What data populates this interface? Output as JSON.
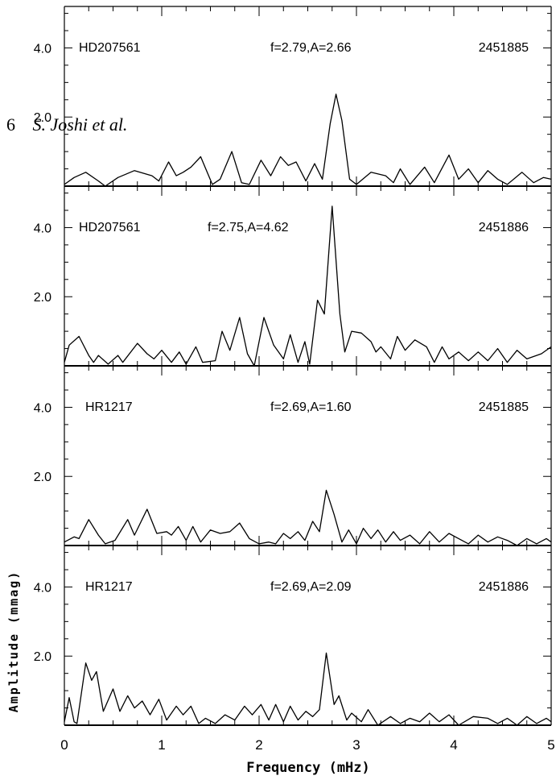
{
  "header": {
    "page_number": "6",
    "running_author": "S. Joshi et al."
  },
  "chart_data": {
    "type": "line",
    "xlabel": "Frequency (mHz)",
    "ylabel": "Amplitude (mmag)",
    "xlim": [
      0,
      5
    ],
    "ylim": [
      0,
      5.2
    ],
    "x_ticks": [
      "0",
      "1",
      "2",
      "3",
      "4",
      "5"
    ],
    "y_ticks": [
      "2.0",
      "4.0"
    ],
    "grid": false,
    "panels": [
      {
        "star": "HD207561",
        "label": "f=2.79,A=2.66",
        "date": "2451885",
        "series": [
          {
            "x": 0.0,
            "y": 0.05
          },
          {
            "x": 0.1,
            "y": 0.25
          },
          {
            "x": 0.22,
            "y": 0.4
          },
          {
            "x": 0.35,
            "y": 0.15
          },
          {
            "x": 0.42,
            "y": 0.0
          },
          {
            "x": 0.55,
            "y": 0.25
          },
          {
            "x": 0.72,
            "y": 0.45
          },
          {
            "x": 0.9,
            "y": 0.3
          },
          {
            "x": 0.97,
            "y": 0.15
          },
          {
            "x": 1.07,
            "y": 0.7
          },
          {
            "x": 1.15,
            "y": 0.3
          },
          {
            "x": 1.22,
            "y": 0.4
          },
          {
            "x": 1.3,
            "y": 0.55
          },
          {
            "x": 1.4,
            "y": 0.85
          },
          {
            "x": 1.52,
            "y": 0.05
          },
          {
            "x": 1.6,
            "y": 0.2
          },
          {
            "x": 1.72,
            "y": 1.0
          },
          {
            "x": 1.82,
            "y": 0.1
          },
          {
            "x": 1.9,
            "y": 0.05
          },
          {
            "x": 2.02,
            "y": 0.75
          },
          {
            "x": 2.12,
            "y": 0.3
          },
          {
            "x": 2.22,
            "y": 0.85
          },
          {
            "x": 2.3,
            "y": 0.6
          },
          {
            "x": 2.38,
            "y": 0.7
          },
          {
            "x": 2.48,
            "y": 0.15
          },
          {
            "x": 2.57,
            "y": 0.65
          },
          {
            "x": 2.65,
            "y": 0.2
          },
          {
            "x": 2.73,
            "y": 1.8
          },
          {
            "x": 2.79,
            "y": 2.66
          },
          {
            "x": 2.85,
            "y": 1.9
          },
          {
            "x": 2.93,
            "y": 0.2
          },
          {
            "x": 3.0,
            "y": 0.05
          },
          {
            "x": 3.15,
            "y": 0.4
          },
          {
            "x": 3.3,
            "y": 0.3
          },
          {
            "x": 3.38,
            "y": 0.1
          },
          {
            "x": 3.45,
            "y": 0.5
          },
          {
            "x": 3.55,
            "y": 0.05
          },
          {
            "x": 3.7,
            "y": 0.55
          },
          {
            "x": 3.8,
            "y": 0.1
          },
          {
            "x": 3.95,
            "y": 0.9
          },
          {
            "x": 4.05,
            "y": 0.2
          },
          {
            "x": 4.15,
            "y": 0.5
          },
          {
            "x": 4.25,
            "y": 0.1
          },
          {
            "x": 4.35,
            "y": 0.45
          },
          {
            "x": 4.45,
            "y": 0.2
          },
          {
            "x": 4.55,
            "y": 0.05
          },
          {
            "x": 4.7,
            "y": 0.4
          },
          {
            "x": 4.82,
            "y": 0.1
          },
          {
            "x": 4.92,
            "y": 0.25
          },
          {
            "x": 5.0,
            "y": 0.2
          }
        ]
      },
      {
        "star": "HD207561",
        "label": "f=2.75,A=4.62",
        "date": "2451886",
        "series": [
          {
            "x": 0.0,
            "y": 0.1
          },
          {
            "x": 0.05,
            "y": 0.6
          },
          {
            "x": 0.15,
            "y": 0.85
          },
          {
            "x": 0.25,
            "y": 0.3
          },
          {
            "x": 0.3,
            "y": 0.1
          },
          {
            "x": 0.35,
            "y": 0.3
          },
          {
            "x": 0.45,
            "y": 0.05
          },
          {
            "x": 0.55,
            "y": 0.3
          },
          {
            "x": 0.6,
            "y": 0.1
          },
          {
            "x": 0.75,
            "y": 0.65
          },
          {
            "x": 0.85,
            "y": 0.35
          },
          {
            "x": 0.92,
            "y": 0.2
          },
          {
            "x": 1.0,
            "y": 0.45
          },
          {
            "x": 1.1,
            "y": 0.1
          },
          {
            "x": 1.18,
            "y": 0.4
          },
          {
            "x": 1.25,
            "y": 0.05
          },
          {
            "x": 1.35,
            "y": 0.55
          },
          {
            "x": 1.42,
            "y": 0.1
          },
          {
            "x": 1.55,
            "y": 0.15
          },
          {
            "x": 1.62,
            "y": 1.0
          },
          {
            "x": 1.7,
            "y": 0.45
          },
          {
            "x": 1.8,
            "y": 1.4
          },
          {
            "x": 1.88,
            "y": 0.35
          },
          {
            "x": 1.95,
            "y": 0.0
          },
          {
            "x": 2.05,
            "y": 1.4
          },
          {
            "x": 2.15,
            "y": 0.6
          },
          {
            "x": 2.25,
            "y": 0.2
          },
          {
            "x": 2.32,
            "y": 0.9
          },
          {
            "x": 2.4,
            "y": 0.1
          },
          {
            "x": 2.47,
            "y": 0.7
          },
          {
            "x": 2.52,
            "y": 0.05
          },
          {
            "x": 2.6,
            "y": 1.9
          },
          {
            "x": 2.67,
            "y": 1.5
          },
          {
            "x": 2.75,
            "y": 4.62
          },
          {
            "x": 2.83,
            "y": 1.5
          },
          {
            "x": 2.88,
            "y": 0.4
          },
          {
            "x": 2.95,
            "y": 1.0
          },
          {
            "x": 3.05,
            "y": 0.95
          },
          {
            "x": 3.15,
            "y": 0.7
          },
          {
            "x": 3.2,
            "y": 0.4
          },
          {
            "x": 3.25,
            "y": 0.55
          },
          {
            "x": 3.35,
            "y": 0.2
          },
          {
            "x": 3.42,
            "y": 0.85
          },
          {
            "x": 3.5,
            "y": 0.45
          },
          {
            "x": 3.6,
            "y": 0.75
          },
          {
            "x": 3.72,
            "y": 0.55
          },
          {
            "x": 3.8,
            "y": 0.1
          },
          {
            "x": 3.88,
            "y": 0.55
          },
          {
            "x": 3.95,
            "y": 0.2
          },
          {
            "x": 4.05,
            "y": 0.4
          },
          {
            "x": 4.15,
            "y": 0.15
          },
          {
            "x": 4.25,
            "y": 0.4
          },
          {
            "x": 4.35,
            "y": 0.15
          },
          {
            "x": 4.45,
            "y": 0.5
          },
          {
            "x": 4.55,
            "y": 0.1
          },
          {
            "x": 4.65,
            "y": 0.45
          },
          {
            "x": 4.75,
            "y": 0.2
          },
          {
            "x": 4.9,
            "y": 0.35
          },
          {
            "x": 5.0,
            "y": 0.55
          }
        ]
      },
      {
        "star": "HR1217",
        "label": "f=2.69,A=1.60",
        "date": "2451885",
        "series": [
          {
            "x": 0.0,
            "y": 0.1
          },
          {
            "x": 0.1,
            "y": 0.25
          },
          {
            "x": 0.15,
            "y": 0.2
          },
          {
            "x": 0.25,
            "y": 0.75
          },
          {
            "x": 0.35,
            "y": 0.3
          },
          {
            "x": 0.42,
            "y": 0.05
          },
          {
            "x": 0.52,
            "y": 0.15
          },
          {
            "x": 0.65,
            "y": 0.75
          },
          {
            "x": 0.72,
            "y": 0.3
          },
          {
            "x": 0.85,
            "y": 1.05
          },
          {
            "x": 0.95,
            "y": 0.35
          },
          {
            "x": 1.05,
            "y": 0.4
          },
          {
            "x": 1.1,
            "y": 0.3
          },
          {
            "x": 1.17,
            "y": 0.55
          },
          {
            "x": 1.25,
            "y": 0.15
          },
          {
            "x": 1.32,
            "y": 0.55
          },
          {
            "x": 1.4,
            "y": 0.1
          },
          {
            "x": 1.5,
            "y": 0.45
          },
          {
            "x": 1.6,
            "y": 0.35
          },
          {
            "x": 1.7,
            "y": 0.4
          },
          {
            "x": 1.8,
            "y": 0.65
          },
          {
            "x": 1.9,
            "y": 0.2
          },
          {
            "x": 2.0,
            "y": 0.05
          },
          {
            "x": 2.1,
            "y": 0.1
          },
          {
            "x": 2.17,
            "y": 0.05
          },
          {
            "x": 2.25,
            "y": 0.35
          },
          {
            "x": 2.32,
            "y": 0.2
          },
          {
            "x": 2.4,
            "y": 0.4
          },
          {
            "x": 2.47,
            "y": 0.15
          },
          {
            "x": 2.55,
            "y": 0.7
          },
          {
            "x": 2.62,
            "y": 0.4
          },
          {
            "x": 2.69,
            "y": 1.6
          },
          {
            "x": 2.77,
            "y": 0.9
          },
          {
            "x": 2.85,
            "y": 0.1
          },
          {
            "x": 2.92,
            "y": 0.45
          },
          {
            "x": 3.0,
            "y": 0.05
          },
          {
            "x": 3.07,
            "y": 0.5
          },
          {
            "x": 3.15,
            "y": 0.2
          },
          {
            "x": 3.22,
            "y": 0.45
          },
          {
            "x": 3.3,
            "y": 0.1
          },
          {
            "x": 3.38,
            "y": 0.4
          },
          {
            "x": 3.45,
            "y": 0.15
          },
          {
            "x": 3.55,
            "y": 0.3
          },
          {
            "x": 3.65,
            "y": 0.05
          },
          {
            "x": 3.75,
            "y": 0.4
          },
          {
            "x": 3.85,
            "y": 0.1
          },
          {
            "x": 3.95,
            "y": 0.35
          },
          {
            "x": 4.05,
            "y": 0.2
          },
          {
            "x": 4.15,
            "y": 0.05
          },
          {
            "x": 4.25,
            "y": 0.3
          },
          {
            "x": 4.35,
            "y": 0.1
          },
          {
            "x": 4.45,
            "y": 0.25
          },
          {
            "x": 4.55,
            "y": 0.15
          },
          {
            "x": 4.65,
            "y": 0.0
          },
          {
            "x": 4.75,
            "y": 0.2
          },
          {
            "x": 4.85,
            "y": 0.05
          },
          {
            "x": 4.95,
            "y": 0.2
          },
          {
            "x": 5.0,
            "y": 0.1
          }
        ]
      },
      {
        "star": "HR1217",
        "label": "f=2.69,A=2.09",
        "date": "2451886",
        "series": [
          {
            "x": 0.0,
            "y": 0.1
          },
          {
            "x": 0.05,
            "y": 0.8
          },
          {
            "x": 0.1,
            "y": 0.1
          },
          {
            "x": 0.13,
            "y": 0.05
          },
          {
            "x": 0.22,
            "y": 1.8
          },
          {
            "x": 0.28,
            "y": 1.3
          },
          {
            "x": 0.33,
            "y": 1.55
          },
          {
            "x": 0.4,
            "y": 0.4
          },
          {
            "x": 0.5,
            "y": 1.05
          },
          {
            "x": 0.57,
            "y": 0.4
          },
          {
            "x": 0.65,
            "y": 0.85
          },
          {
            "x": 0.72,
            "y": 0.5
          },
          {
            "x": 0.8,
            "y": 0.7
          },
          {
            "x": 0.88,
            "y": 0.3
          },
          {
            "x": 0.97,
            "y": 0.75
          },
          {
            "x": 1.05,
            "y": 0.15
          },
          {
            "x": 1.15,
            "y": 0.55
          },
          {
            "x": 1.22,
            "y": 0.3
          },
          {
            "x": 1.3,
            "y": 0.55
          },
          {
            "x": 1.38,
            "y": 0.05
          },
          {
            "x": 1.45,
            "y": 0.2
          },
          {
            "x": 1.55,
            "y": 0.05
          },
          {
            "x": 1.65,
            "y": 0.3
          },
          {
            "x": 1.75,
            "y": 0.15
          },
          {
            "x": 1.85,
            "y": 0.55
          },
          {
            "x": 1.93,
            "y": 0.3
          },
          {
            "x": 2.02,
            "y": 0.6
          },
          {
            "x": 2.1,
            "y": 0.15
          },
          {
            "x": 2.17,
            "y": 0.6
          },
          {
            "x": 2.25,
            "y": 0.1
          },
          {
            "x": 2.32,
            "y": 0.55
          },
          {
            "x": 2.4,
            "y": 0.15
          },
          {
            "x": 2.48,
            "y": 0.4
          },
          {
            "x": 2.55,
            "y": 0.25
          },
          {
            "x": 2.62,
            "y": 0.45
          },
          {
            "x": 2.69,
            "y": 2.09
          },
          {
            "x": 2.77,
            "y": 0.6
          },
          {
            "x": 2.82,
            "y": 0.85
          },
          {
            "x": 2.9,
            "y": 0.15
          },
          {
            "x": 2.95,
            "y": 0.35
          },
          {
            "x": 3.05,
            "y": 0.1
          },
          {
            "x": 3.12,
            "y": 0.45
          },
          {
            "x": 3.22,
            "y": 0.0
          },
          {
            "x": 3.35,
            "y": 0.25
          },
          {
            "x": 3.45,
            "y": 0.05
          },
          {
            "x": 3.55,
            "y": 0.2
          },
          {
            "x": 3.65,
            "y": 0.1
          },
          {
            "x": 3.75,
            "y": 0.35
          },
          {
            "x": 3.85,
            "y": 0.1
          },
          {
            "x": 3.95,
            "y": 0.3
          },
          {
            "x": 4.05,
            "y": 0.0
          },
          {
            "x": 4.2,
            "y": 0.25
          },
          {
            "x": 4.35,
            "y": 0.2
          },
          {
            "x": 4.45,
            "y": 0.05
          },
          {
            "x": 4.55,
            "y": 0.2
          },
          {
            "x": 4.65,
            "y": 0.0
          },
          {
            "x": 4.75,
            "y": 0.25
          },
          {
            "x": 4.85,
            "y": 0.05
          },
          {
            "x": 4.95,
            "y": 0.2
          },
          {
            "x": 5.0,
            "y": 0.1
          }
        ]
      }
    ]
  }
}
